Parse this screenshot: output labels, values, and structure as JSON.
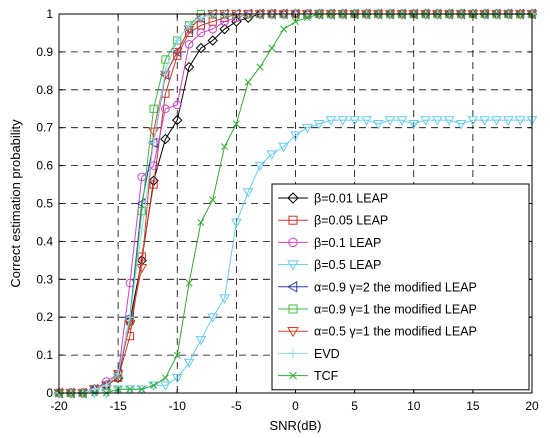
{
  "chart_data": {
    "type": "line",
    "xlabel": "SNR(dB)",
    "ylabel": "Correct estimation probability",
    "xlim": [
      -20,
      20
    ],
    "ylim": [
      0,
      1
    ],
    "xticks": [
      -20,
      -15,
      -10,
      -5,
      0,
      5,
      10,
      15,
      20
    ],
    "yticks": [
      0,
      0.1,
      0.2,
      0.3,
      0.4,
      0.5,
      0.6,
      0.7,
      0.8,
      0.9,
      1
    ],
    "xtick_labels": [
      "-20",
      "-15",
      "-10",
      "-5",
      "0",
      "5",
      "10",
      "15",
      "20"
    ],
    "ytick_labels": [
      "0",
      "0.1",
      "0.2",
      "0.3",
      "0.4",
      "0.5",
      "0.6",
      "0.7",
      "0.8",
      "0.9",
      "1"
    ],
    "grid": true,
    "grid_style": "dashed",
    "legend_position": "bottom-right",
    "x": [
      -20,
      -19,
      -18,
      -17,
      -16,
      -15,
      -14,
      -13,
      -12,
      -11,
      -10,
      -9,
      -8,
      -7,
      -6,
      -5,
      -4,
      -3,
      -2,
      -1,
      0,
      1,
      2,
      3,
      4,
      5,
      6,
      7,
      8,
      9,
      10,
      11,
      12,
      13,
      14,
      15,
      16,
      17,
      18,
      19,
      20
    ],
    "series": [
      {
        "name": "β=0.01 LEAP",
        "color": "#000000",
        "marker": "diamond",
        "values": [
          0,
          0,
          0,
          0.01,
          0.02,
          0.04,
          0.19,
          0.35,
          0.56,
          0.67,
          0.72,
          0.86,
          0.91,
          0.93,
          0.96,
          0.98,
          0.99,
          1,
          1,
          1,
          1,
          1,
          1,
          1,
          1,
          1,
          1,
          1,
          1,
          1,
          1,
          1,
          1,
          1,
          1,
          1,
          1,
          1,
          1,
          1,
          1
        ]
      },
      {
        "name": "β=0.05 LEAP",
        "color": "#c8342a",
        "marker": "square",
        "values": [
          0,
          0,
          0,
          0.01,
          0.02,
          0.04,
          0.15,
          0.36,
          0.55,
          0.79,
          0.89,
          0.95,
          0.97,
          0.98,
          0.99,
          1,
          1,
          1,
          1,
          1,
          1,
          1,
          1,
          1,
          1,
          1,
          1,
          1,
          1,
          1,
          1,
          1,
          1,
          1,
          1,
          1,
          1,
          1,
          1,
          1,
          1
        ]
      },
      {
        "name": "β=0.1 LEAP",
        "color": "#cc44cc",
        "marker": "circle",
        "values": [
          0,
          0,
          0,
          0.01,
          0.03,
          0.05,
          0.29,
          0.57,
          0.6,
          0.75,
          0.76,
          0.92,
          0.95,
          0.96,
          0.98,
          0.99,
          1,
          1,
          1,
          1,
          1,
          1,
          1,
          1,
          1,
          1,
          1,
          1,
          1,
          1,
          1,
          1,
          1,
          1,
          1,
          1,
          1,
          1,
          1,
          1,
          1
        ]
      },
      {
        "name": "β=0.5 LEAP",
        "color": "#66ccee",
        "marker": "triangle-down",
        "values": [
          0,
          0,
          0,
          0,
          0,
          0.01,
          0.01,
          0.01,
          0.02,
          0.02,
          0.04,
          0.08,
          0.14,
          0.2,
          0.25,
          0.45,
          0.53,
          0.6,
          0.63,
          0.65,
          0.68,
          0.7,
          0.71,
          0.72,
          0.72,
          0.72,
          0.72,
          0.71,
          0.72,
          0.72,
          0.71,
          0.72,
          0.72,
          0.72,
          0.71,
          0.72,
          0.72,
          0.72,
          0.72,
          0.72,
          0.72
        ]
      },
      {
        "name": "α=0.9 γ=2  the modified LEAP",
        "color": "#2a3aa8",
        "marker": "triangle-left",
        "values": [
          0,
          0,
          0,
          0.01,
          0.02,
          0.05,
          0.2,
          0.5,
          0.66,
          0.84,
          0.9,
          0.96,
          0.99,
          1,
          1,
          1,
          1,
          1,
          1,
          1,
          1,
          1,
          1,
          1,
          1,
          1,
          1,
          1,
          1,
          1,
          1,
          1,
          1,
          1,
          1,
          1,
          1,
          1,
          1,
          1,
          1
        ]
      },
      {
        "name": "α=0.9 γ=1  the modified LEAP",
        "color": "#44bb44",
        "marker": "square",
        "values": [
          0,
          0,
          0,
          0.01,
          0.02,
          0.05,
          0.19,
          0.48,
          0.75,
          0.88,
          0.93,
          0.97,
          1,
          1,
          1,
          1,
          1,
          1,
          1,
          1,
          1,
          1,
          1,
          1,
          1,
          1,
          1,
          1,
          1,
          1,
          1,
          1,
          1,
          1,
          1,
          1,
          1,
          1,
          1,
          1,
          1
        ]
      },
      {
        "name": "α=0.5 γ=1  the modified LEAP",
        "color": "#d2452c",
        "marker": "triangle-down",
        "values": [
          0,
          0,
          0,
          0.01,
          0.02,
          0.05,
          0.18,
          0.33,
          0.69,
          0.84,
          0.9,
          0.96,
          0.99,
          1,
          1,
          1,
          1,
          1,
          1,
          1,
          1,
          1,
          1,
          1,
          1,
          1,
          1,
          1,
          1,
          1,
          1,
          1,
          1,
          1,
          1,
          1,
          1,
          1,
          1,
          1,
          1
        ]
      },
      {
        "name": "EVD",
        "color": "#8fdcf5",
        "marker": "plus",
        "values": [
          0,
          0,
          0,
          0.01,
          0.02,
          0.05,
          0.2,
          0.43,
          0.66,
          0.85,
          0.93,
          0.97,
          0.99,
          1,
          1,
          1,
          1,
          1,
          1,
          1,
          1,
          1,
          1,
          1,
          1,
          1,
          1,
          1,
          1,
          1,
          1,
          1,
          1,
          1,
          1,
          1,
          1,
          1,
          1,
          1,
          1
        ]
      },
      {
        "name": "TCF",
        "color": "#33aa33",
        "marker": "x",
        "values": [
          0,
          0,
          0,
          0,
          0,
          0.01,
          0.01,
          0.01,
          0.02,
          0.04,
          0.1,
          0.29,
          0.45,
          0.51,
          0.65,
          0.71,
          0.82,
          0.86,
          0.91,
          0.96,
          0.98,
          0.99,
          1,
          1,
          1,
          1,
          1,
          1,
          1,
          1,
          1,
          1,
          1,
          1,
          1,
          1,
          1,
          1,
          1,
          1,
          1
        ]
      }
    ]
  }
}
